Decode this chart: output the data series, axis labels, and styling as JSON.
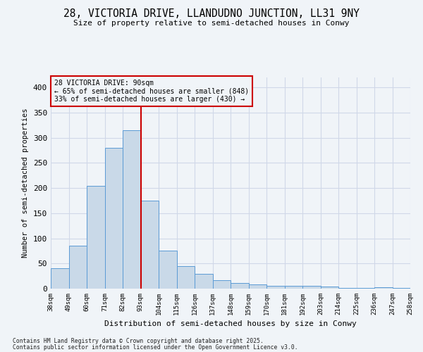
{
  "title_line1": "28, VICTORIA DRIVE, LLANDUDNO JUNCTION, LL31 9NY",
  "title_line2": "Size of property relative to semi-detached houses in Conwy",
  "xlabel": "Distribution of semi-detached houses by size in Conwy",
  "ylabel": "Number of semi-detached properties",
  "categories": [
    "38sqm",
    "49sqm",
    "60sqm",
    "71sqm",
    "82sqm",
    "93sqm",
    "104sqm",
    "115sqm",
    "126sqm",
    "137sqm",
    "148sqm",
    "159sqm",
    "170sqm",
    "181sqm",
    "192sqm",
    "203sqm",
    "214sqm",
    "225sqm",
    "236sqm",
    "247sqm",
    "258sqm"
  ],
  "values": [
    40,
    86,
    204,
    280,
    315,
    175,
    75,
    45,
    30,
    17,
    11,
    8,
    6,
    5,
    6,
    4,
    2,
    1,
    3,
    1
  ],
  "bar_color": "#c9d9e8",
  "bar_edge_color": "#5b9bd5",
  "vline_x_index": 5,
  "annotation_title": "28 VICTORIA DRIVE: 90sqm",
  "annotation_line1": "← 65% of semi-detached houses are smaller (848)",
  "annotation_line2": "33% of semi-detached houses are larger (430) →",
  "annotation_box_color": "#cc0000",
  "vline_color": "#cc0000",
  "grid_color": "#d0d8e8",
  "background_color": "#f0f4f8",
  "ylim": [
    0,
    420
  ],
  "yticks": [
    0,
    50,
    100,
    150,
    200,
    250,
    300,
    350,
    400
  ],
  "footnote_line1": "Contains HM Land Registry data © Crown copyright and database right 2025.",
  "footnote_line2": "Contains public sector information licensed under the Open Government Licence v3.0."
}
